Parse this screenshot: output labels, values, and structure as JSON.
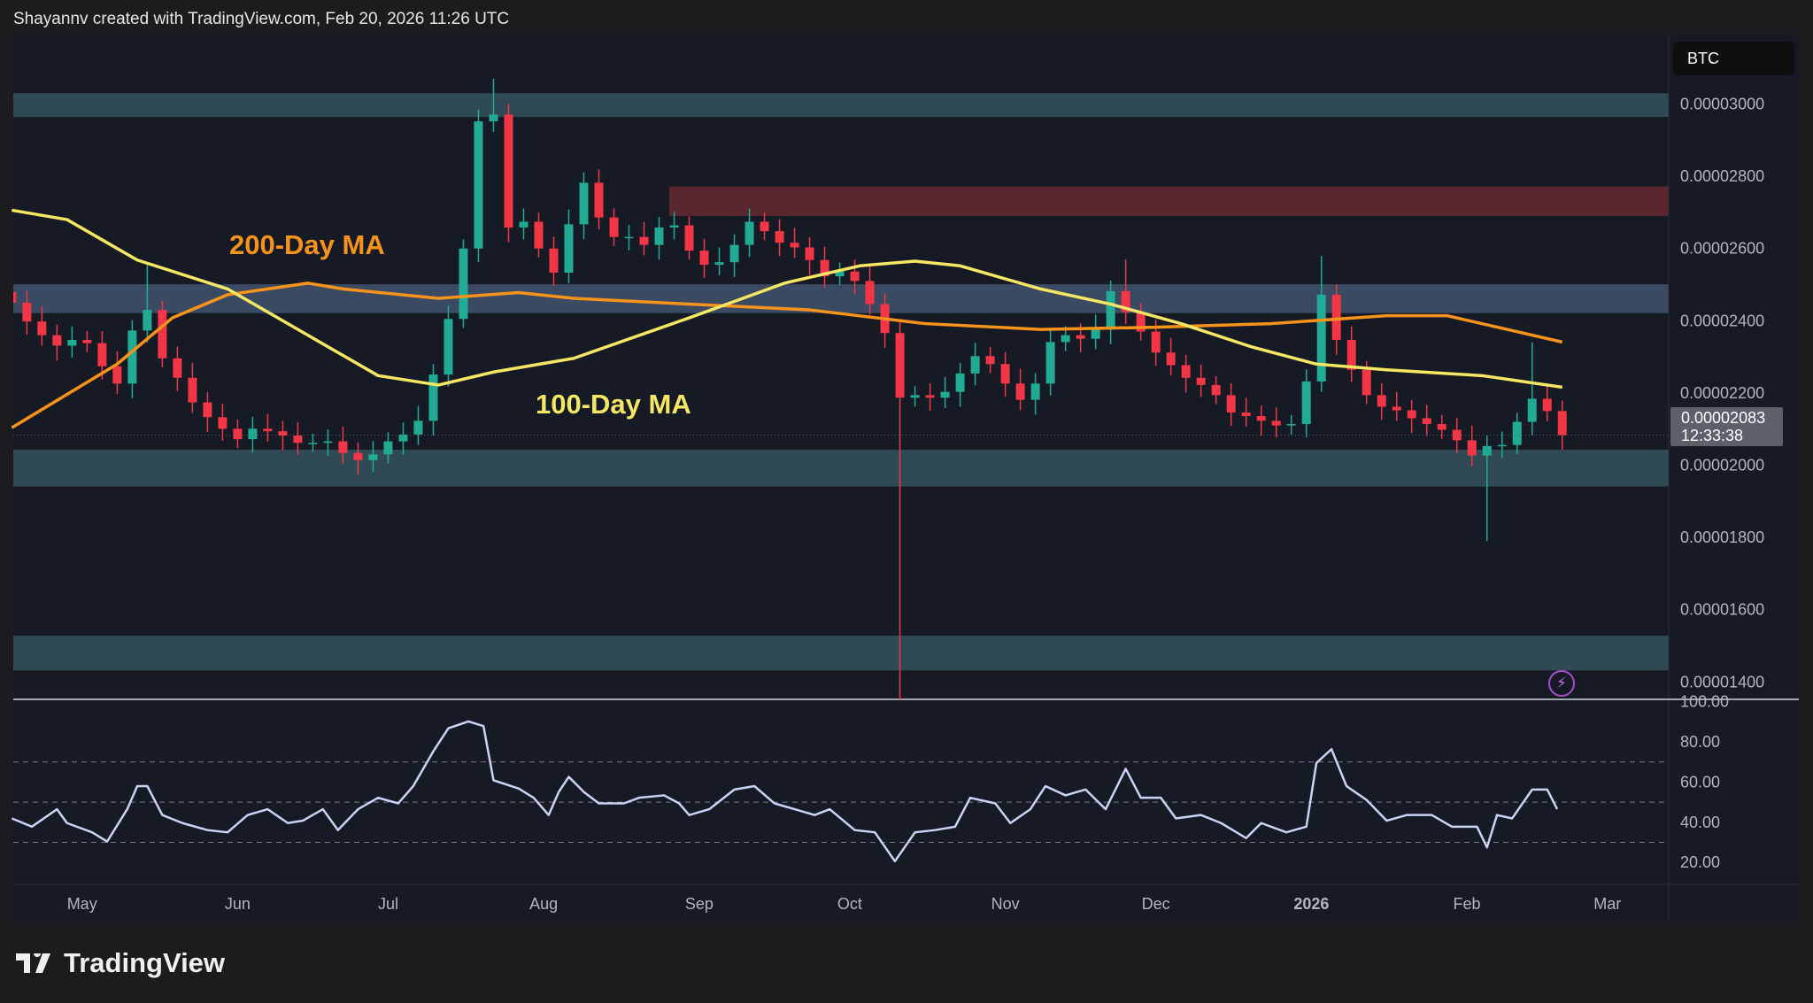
{
  "header": {
    "credit": "Shayannv created with TradingView.com, Feb 20, 2026 11:26 UTC"
  },
  "symbol_badge": "BTC",
  "last_price": {
    "value": "0.00002083",
    "countdown": "12:33:38"
  },
  "logo_text": "TradingView",
  "alert_icon": "lightning-icon",
  "colors": {
    "up": "#22ab94",
    "down": "#f23645",
    "ma100": "#f5e663",
    "ma200": "#f7931a",
    "rsi": "#c8d3f5",
    "support_zone": "#2f4a55",
    "resistance_zone": "#5a2630",
    "ma_zone": "#3a4a63"
  },
  "chart_data": [
    {
      "type": "candlestick",
      "price_axis": {
        "ticks": [
          "0.00003000",
          "0.00002800",
          "0.00002600",
          "0.00002400",
          "0.00002200",
          "0.00002000",
          "0.00001800",
          "0.00001600",
          "0.00001400"
        ],
        "range": [
          1.33e-05,
          3.11e-05
        ]
      },
      "time_axis": {
        "ticks": [
          {
            "label": "May",
            "date": "2025-05-01",
            "bold": false
          },
          {
            "label": "Jun",
            "date": "2025-06-01",
            "bold": false
          },
          {
            "label": "Jul",
            "date": "2025-07-01",
            "bold": false
          },
          {
            "label": "Aug",
            "date": "2025-08-01",
            "bold": false
          },
          {
            "label": "Sep",
            "date": "2025-09-01",
            "bold": false
          },
          {
            "label": "Oct",
            "date": "2025-10-01",
            "bold": false
          },
          {
            "label": "Nov",
            "date": "2025-11-01",
            "bold": false
          },
          {
            "label": "Dec",
            "date": "2025-12-01",
            "bold": false
          },
          {
            "label": "2026",
            "date": "2026-01-01",
            "bold": true
          },
          {
            "label": "Feb",
            "date": "2026-02-01",
            "bold": false
          },
          {
            "label": "Mar",
            "date": "2026-03-01",
            "bold": false
          }
        ]
      },
      "zones": [
        {
          "kind": "support",
          "from": 2.964e-05,
          "to": 3.03e-05
        },
        {
          "kind": "resistance",
          "from": 2.69e-05,
          "to": 2.772e-05
        },
        {
          "kind": "ma",
          "from": 2.421e-05,
          "to": 2.501e-05
        },
        {
          "kind": "support",
          "from": 1.941e-05,
          "to": 2.043e-05
        },
        {
          "kind": "support",
          "from": 1.432e-05,
          "to": 1.528e-05
        }
      ],
      "annotations": [
        {
          "text": "200-Day MA",
          "series": "ma200"
        },
        {
          "text": "100-Day MA",
          "series": "ma100"
        }
      ],
      "dates": [
        "2025-04-17",
        "2025-04-20",
        "2025-04-23",
        "2025-04-26",
        "2025-04-29",
        "2025-05-02",
        "2025-05-05",
        "2025-05-08",
        "2025-05-11",
        "2025-05-14",
        "2025-05-17",
        "2025-05-20",
        "2025-05-23",
        "2025-05-26",
        "2025-05-29",
        "2025-06-01",
        "2025-06-04",
        "2025-06-07",
        "2025-06-10",
        "2025-06-13",
        "2025-06-16",
        "2025-06-19",
        "2025-06-22",
        "2025-06-25",
        "2025-06-28",
        "2025-07-01",
        "2025-07-04",
        "2025-07-07",
        "2025-07-10",
        "2025-07-13",
        "2025-07-16",
        "2025-07-19",
        "2025-07-22",
        "2025-07-25",
        "2025-07-28",
        "2025-07-31",
        "2025-08-03",
        "2025-08-06",
        "2025-08-09",
        "2025-08-12",
        "2025-08-15",
        "2025-08-18",
        "2025-08-21",
        "2025-08-24",
        "2025-08-27",
        "2025-08-30",
        "2025-09-02",
        "2025-09-05",
        "2025-09-08",
        "2025-09-11",
        "2025-09-14",
        "2025-09-17",
        "2025-09-20",
        "2025-09-23",
        "2025-09-26",
        "2025-09-29",
        "2025-10-02",
        "2025-10-05",
        "2025-10-08",
        "2025-10-11",
        "2025-10-14",
        "2025-10-17",
        "2025-10-20",
        "2025-10-23",
        "2025-10-26",
        "2025-10-29",
        "2025-11-01",
        "2025-11-04",
        "2025-11-07",
        "2025-11-10",
        "2025-11-13",
        "2025-11-16",
        "2025-11-19",
        "2025-11-22",
        "2025-11-25",
        "2025-11-28",
        "2025-12-01",
        "2025-12-04",
        "2025-12-07",
        "2025-12-10",
        "2025-12-13",
        "2025-12-16",
        "2025-12-19",
        "2025-12-22",
        "2025-12-25",
        "2025-12-28",
        "2025-12-31",
        "2026-01-03",
        "2026-01-06",
        "2026-01-09",
        "2026-01-12",
        "2026-01-15",
        "2026-01-18",
        "2026-01-21",
        "2026-01-24",
        "2026-01-27",
        "2026-01-30",
        "2026-02-02",
        "2026-02-05",
        "2026-02-08",
        "2026-02-11",
        "2026-02-14",
        "2026-02-17",
        "2026-02-20"
      ],
      "close": [
        2.45e-05,
        2.398e-05,
        2.36e-05,
        2.331e-05,
        2.347e-05,
        2.338e-05,
        2.274e-05,
        2.226e-05,
        2.373e-05,
        2.43e-05,
        2.296e-05,
        2.242e-05,
        2.174e-05,
        2.133e-05,
        2.101e-05,
        2.072e-05,
        2.101e-05,
        2.094e-05,
        2.082e-05,
        2.062e-05,
        2.062e-05,
        2.066e-05,
        2.034e-05,
        2.014e-05,
        2.03e-05,
        2.066e-05,
        2.085e-05,
        2.123e-05,
        2.251e-05,
        2.405e-05,
        2.6e-05,
        2.952e-05,
        2.971e-05,
        2.658e-05,
        2.674e-05,
        2.6e-05,
        2.533e-05,
        2.667e-05,
        2.782e-05,
        2.686e-05,
        2.632e-05,
        2.632e-05,
        2.61e-05,
        2.658e-05,
        2.664e-05,
        2.594e-05,
        2.555e-05,
        2.562e-05,
        2.61e-05,
        2.674e-05,
        2.648e-05,
        2.616e-05,
        2.603e-05,
        2.568e-05,
        2.523e-05,
        2.536e-05,
        2.51e-05,
        2.446e-05,
        2.366e-05,
        2.187e-05,
        2.194e-05,
        2.187e-05,
        2.203e-05,
        2.254e-05,
        2.302e-05,
        2.28e-05,
        2.226e-05,
        2.181e-05,
        2.226e-05,
        2.341e-05,
        2.36e-05,
        2.35e-05,
        2.376e-05,
        2.482e-05,
        2.424e-05,
        2.37e-05,
        2.312e-05,
        2.277e-05,
        2.242e-05,
        2.222e-05,
        2.194e-05,
        2.146e-05,
        2.136e-05,
        2.123e-05,
        2.11e-05,
        2.114e-05,
        2.232e-05,
        2.472e-05,
        2.347e-05,
        2.264e-05,
        2.194e-05,
        2.162e-05,
        2.152e-05,
        2.13e-05,
        2.114e-05,
        2.098e-05,
        2.069e-05,
        2.027e-05,
        2.053e-05,
        2.056e-05,
        2.12e-05,
        2.184e-05,
        2.15e-05,
        2.083e-05
      ],
      "notable_wicks": [
        {
          "date": "2025-05-14",
          "high": 2.56e-05
        },
        {
          "date": "2025-07-22",
          "high": 3.07e-05
        },
        {
          "date": "2025-10-11",
          "low": 1.35e-05
        },
        {
          "date": "2025-11-25",
          "high": 2.57e-05
        },
        {
          "date": "2026-01-03",
          "high": 2.58e-05
        },
        {
          "date": "2026-02-05",
          "low": 1.79e-05
        },
        {
          "date": "2026-02-14",
          "high": 2.34e-05
        }
      ],
      "ma200": [
        [
          "2025-04-17",
          2.104e-05
        ],
        [
          "2025-05-08",
          2.28e-05
        ],
        [
          "2025-05-19",
          2.408e-05
        ],
        [
          "2025-05-30",
          2.472e-05
        ],
        [
          "2025-06-15",
          2.504e-05
        ],
        [
          "2025-06-22",
          2.488e-05
        ],
        [
          "2025-07-11",
          2.462e-05
        ],
        [
          "2025-07-27",
          2.478e-05
        ],
        [
          "2025-08-07",
          2.462e-05
        ],
        [
          "2025-08-30",
          2.446e-05
        ],
        [
          "2025-09-23",
          2.43e-05
        ],
        [
          "2025-10-16",
          2.392e-05
        ],
        [
          "2025-11-08",
          2.376e-05
        ],
        [
          "2025-12-01",
          2.382e-05
        ],
        [
          "2025-12-24",
          2.392e-05
        ],
        [
          "2026-01-16",
          2.414e-05
        ],
        [
          "2026-01-28",
          2.414e-05
        ],
        [
          "2026-02-09",
          2.376e-05
        ],
        [
          "2026-02-20",
          2.341e-05
        ]
      ],
      "ma100": [
        [
          "2025-04-17",
          2.706e-05
        ],
        [
          "2025-04-28",
          2.68e-05
        ],
        [
          "2025-05-12",
          2.568e-05
        ],
        [
          "2025-05-30",
          2.488e-05
        ],
        [
          "2025-06-15",
          2.36e-05
        ],
        [
          "2025-06-29",
          2.248e-05
        ],
        [
          "2025-07-11",
          2.222e-05
        ],
        [
          "2025-07-22",
          2.258e-05
        ],
        [
          "2025-08-07",
          2.296e-05
        ],
        [
          "2025-08-30",
          2.408e-05
        ],
        [
          "2025-09-18",
          2.504e-05
        ],
        [
          "2025-10-03",
          2.552e-05
        ],
        [
          "2025-10-14",
          2.565e-05
        ],
        [
          "2025-10-23",
          2.552e-05
        ],
        [
          "2025-11-08",
          2.488e-05
        ],
        [
          "2025-11-22",
          2.446e-05
        ],
        [
          "2025-12-06",
          2.392e-05
        ],
        [
          "2025-12-20",
          2.328e-05
        ],
        [
          "2026-01-02",
          2.28e-05
        ],
        [
          "2026-01-16",
          2.264e-05
        ],
        [
          "2026-02-04",
          2.248e-05
        ],
        [
          "2026-02-20",
          2.216e-05
        ]
      ]
    },
    {
      "type": "line",
      "axis_ticks": [
        "100.00",
        "80.00",
        "60.00",
        "40.00",
        "20.00"
      ],
      "ylim": [
        0,
        100
      ],
      "bands": [
        70,
        50,
        30
      ],
      "values": [
        [
          "2025-04-17",
          41.9
        ],
        [
          "2025-04-21",
          37.8
        ],
        [
          "2025-04-26",
          46.5
        ],
        [
          "2025-04-28",
          39.6
        ],
        [
          "2025-05-03",
          35
        ],
        [
          "2025-05-06",
          30.4
        ],
        [
          "2025-05-10",
          46.5
        ],
        [
          "2025-05-12",
          58
        ],
        [
          "2025-05-14",
          58
        ],
        [
          "2025-05-17",
          43.6
        ],
        [
          "2025-05-21",
          39.6
        ],
        [
          "2025-05-26",
          36.1
        ],
        [
          "2025-05-30",
          35
        ],
        [
          "2025-06-03",
          43.6
        ],
        [
          "2025-06-07",
          46.5
        ],
        [
          "2025-06-11",
          39.6
        ],
        [
          "2025-06-14",
          40.8
        ],
        [
          "2025-06-18",
          46.5
        ],
        [
          "2025-06-21",
          36.1
        ],
        [
          "2025-06-25",
          46.5
        ],
        [
          "2025-06-29",
          52.2
        ],
        [
          "2025-07-03",
          49.4
        ],
        [
          "2025-07-06",
          58
        ],
        [
          "2025-07-10",
          75.3
        ],
        [
          "2025-07-13",
          86.8
        ],
        [
          "2025-07-17",
          90.2
        ],
        [
          "2025-07-20",
          87.9
        ],
        [
          "2025-07-22",
          60.9
        ],
        [
          "2025-07-27",
          56.8
        ],
        [
          "2025-07-30",
          52.2
        ],
        [
          "2025-08-02",
          43.6
        ],
        [
          "2025-08-04",
          55.1
        ],
        [
          "2025-08-06",
          62.6
        ],
        [
          "2025-08-09",
          55.1
        ],
        [
          "2025-08-12",
          49.4
        ],
        [
          "2025-08-17",
          49.4
        ],
        [
          "2025-08-20",
          52.2
        ],
        [
          "2025-08-25",
          53.4
        ],
        [
          "2025-08-28",
          49.4
        ],
        [
          "2025-08-30",
          43.6
        ],
        [
          "2025-09-03",
          46.5
        ],
        [
          "2025-09-08",
          56.3
        ],
        [
          "2025-09-12",
          58
        ],
        [
          "2025-09-16",
          49.4
        ],
        [
          "2025-09-20",
          46.5
        ],
        [
          "2025-09-24",
          43.6
        ],
        [
          "2025-09-27",
          46.5
        ],
        [
          "2025-10-02",
          36.1
        ],
        [
          "2025-10-06",
          35
        ],
        [
          "2025-10-10",
          20.6
        ],
        [
          "2025-10-14",
          35
        ],
        [
          "2025-10-18",
          36.1
        ],
        [
          "2025-10-22",
          37.8
        ],
        [
          "2025-10-25",
          52.2
        ],
        [
          "2025-10-30",
          49.4
        ],
        [
          "2025-11-02",
          39.6
        ],
        [
          "2025-11-06",
          46.5
        ],
        [
          "2025-11-09",
          58
        ],
        [
          "2025-11-13",
          53.4
        ],
        [
          "2025-11-17",
          56.3
        ],
        [
          "2025-11-21",
          46.5
        ],
        [
          "2025-11-25",
          66.6
        ],
        [
          "2025-11-28",
          52.2
        ],
        [
          "2025-12-02",
          52.2
        ],
        [
          "2025-12-05",
          41.9
        ],
        [
          "2025-12-10",
          43.6
        ],
        [
          "2025-12-14",
          39.6
        ],
        [
          "2025-12-19",
          32.1
        ],
        [
          "2025-12-22",
          39.6
        ],
        [
          "2025-12-27",
          35
        ],
        [
          "2025-12-31",
          37.8
        ],
        [
          "2026-01-02",
          69.5
        ],
        [
          "2026-01-05",
          76.4
        ],
        [
          "2026-01-08",
          58
        ],
        [
          "2026-01-12",
          51.1
        ],
        [
          "2026-01-16",
          40.8
        ],
        [
          "2026-01-20",
          43.6
        ],
        [
          "2026-01-25",
          43.6
        ],
        [
          "2026-01-29",
          37.8
        ],
        [
          "2026-02-03",
          37.8
        ],
        [
          "2026-02-05",
          27.5
        ],
        [
          "2026-02-07",
          43.6
        ],
        [
          "2026-02-10",
          41.9
        ],
        [
          "2026-02-14",
          56.3
        ],
        [
          "2026-02-17",
          56.3
        ],
        [
          "2026-02-19",
          46.5
        ]
      ]
    }
  ]
}
